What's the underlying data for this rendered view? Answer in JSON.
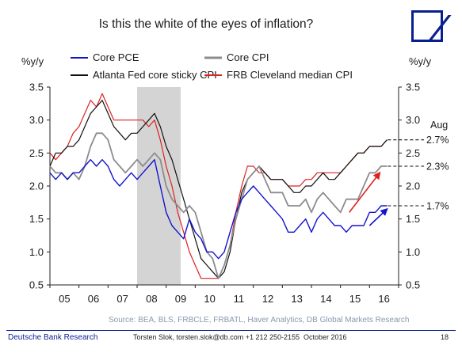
{
  "header": {
    "title": "Is this the white of the eyes of inflation?"
  },
  "footer": {
    "org": "Deutsche Bank Research",
    "contact": "Torsten Slok, torsten.slok@db.com +1 212 250-2155",
    "date": "October 2016",
    "page": "18"
  },
  "colors": {
    "core_pce": "#1414cc",
    "core_cpi": "#8c8c8c",
    "sticky_cpi": "#111111",
    "median_cpi": "#e02020",
    "recession": "#d4d4d4",
    "logo": "#0a1f8f",
    "source_text": "#8a97b0"
  },
  "chart_data": {
    "type": "line",
    "title": "Is this the white of the eyes of inflation?",
    "ylabel_left": "%y/y",
    "ylabel_right": "%y/y",
    "x_ticks": [
      "05",
      "06",
      "07",
      "08",
      "09",
      "10",
      "11",
      "12",
      "13",
      "14",
      "15",
      "16"
    ],
    "x_range": [
      2005.0,
      2017.0
    ],
    "ylim": [
      0.5,
      3.5
    ],
    "y_ticks": [
      "0.5",
      "1.0",
      "1.5",
      "2.0",
      "2.5",
      "3.0",
      "3.5"
    ],
    "grid": false,
    "legend_position": "top",
    "recession_shading": {
      "start": 2008.0,
      "end": 2009.5
    },
    "source": "Source: BEA, BLS, FRBCLE, FRBATL, Haver Analytics, DB Global Markets Research",
    "annotations": {
      "month": "Aug",
      "values": [
        {
          "label": "2.7%",
          "y": 2.7
        },
        {
          "label": "2.3%",
          "y": 2.3
        },
        {
          "label": "1.7%",
          "y": 1.7
        }
      ]
    },
    "series": [
      {
        "name": "Core PCE",
        "key": "core_pce",
        "x": [
          2005.0,
          2005.2,
          2005.4,
          2005.6,
          2005.8,
          2006.0,
          2006.2,
          2006.4,
          2006.6,
          2006.8,
          2007.0,
          2007.2,
          2007.4,
          2007.6,
          2007.8,
          2008.0,
          2008.2,
          2008.4,
          2008.6,
          2008.8,
          2009.0,
          2009.2,
          2009.4,
          2009.6,
          2009.8,
          2010.0,
          2010.2,
          2010.4,
          2010.6,
          2010.8,
          2011.0,
          2011.2,
          2011.4,
          2011.6,
          2011.8,
          2012.0,
          2012.2,
          2012.4,
          2012.6,
          2012.8,
          2013.0,
          2013.2,
          2013.4,
          2013.6,
          2013.8,
          2014.0,
          2014.2,
          2014.4,
          2014.6,
          2014.8,
          2015.0,
          2015.2,
          2015.4,
          2015.6,
          2015.8,
          2016.0,
          2016.2,
          2016.4,
          2016.6
        ],
        "values": [
          2.2,
          2.1,
          2.2,
          2.1,
          2.2,
          2.2,
          2.3,
          2.4,
          2.3,
          2.4,
          2.3,
          2.1,
          2.0,
          2.1,
          2.2,
          2.1,
          2.2,
          2.3,
          2.4,
          2.0,
          1.6,
          1.4,
          1.3,
          1.2,
          1.5,
          1.3,
          1.2,
          1.0,
          1.0,
          0.9,
          1.0,
          1.3,
          1.6,
          1.8,
          1.9,
          2.0,
          1.9,
          1.8,
          1.7,
          1.6,
          1.5,
          1.3,
          1.3,
          1.4,
          1.5,
          1.3,
          1.5,
          1.6,
          1.5,
          1.4,
          1.4,
          1.3,
          1.4,
          1.4,
          1.4,
          1.6,
          1.6,
          1.7,
          1.7
        ]
      },
      {
        "name": "Core CPI",
        "key": "core_cpi",
        "x": [
          2005.0,
          2005.2,
          2005.4,
          2005.6,
          2005.8,
          2006.0,
          2006.2,
          2006.4,
          2006.6,
          2006.8,
          2007.0,
          2007.2,
          2007.4,
          2007.6,
          2007.8,
          2008.0,
          2008.2,
          2008.4,
          2008.6,
          2008.8,
          2009.0,
          2009.2,
          2009.4,
          2009.6,
          2009.8,
          2010.0,
          2010.2,
          2010.4,
          2010.6,
          2010.8,
          2011.0,
          2011.2,
          2011.4,
          2011.6,
          2011.8,
          2012.0,
          2012.2,
          2012.4,
          2012.6,
          2012.8,
          2013.0,
          2013.2,
          2013.4,
          2013.6,
          2013.8,
          2014.0,
          2014.2,
          2014.4,
          2014.6,
          2014.8,
          2015.0,
          2015.2,
          2015.4,
          2015.6,
          2015.8,
          2016.0,
          2016.2,
          2016.4,
          2016.6
        ],
        "values": [
          2.3,
          2.2,
          2.2,
          2.1,
          2.2,
          2.1,
          2.3,
          2.6,
          2.8,
          2.8,
          2.7,
          2.4,
          2.3,
          2.2,
          2.3,
          2.4,
          2.3,
          2.4,
          2.5,
          2.4,
          2.0,
          1.8,
          1.7,
          1.6,
          1.7,
          1.6,
          1.3,
          1.0,
          0.9,
          0.6,
          0.8,
          1.1,
          1.5,
          1.8,
          2.1,
          2.2,
          2.3,
          2.1,
          1.9,
          1.9,
          1.9,
          1.7,
          1.7,
          1.7,
          1.8,
          1.6,
          1.8,
          1.9,
          1.8,
          1.7,
          1.6,
          1.8,
          1.8,
          1.8,
          2.0,
          2.2,
          2.2,
          2.3,
          2.3
        ]
      },
      {
        "name": "Atlanta Fed core sticky CPI",
        "key": "sticky_cpi",
        "x": [
          2005.0,
          2005.2,
          2005.4,
          2005.6,
          2005.8,
          2006.0,
          2006.2,
          2006.4,
          2006.6,
          2006.8,
          2007.0,
          2007.2,
          2007.4,
          2007.6,
          2007.8,
          2008.0,
          2008.2,
          2008.4,
          2008.6,
          2008.8,
          2009.0,
          2009.2,
          2009.4,
          2009.6,
          2009.8,
          2010.0,
          2010.2,
          2010.4,
          2010.6,
          2010.8,
          2011.0,
          2011.2,
          2011.4,
          2011.6,
          2011.8,
          2012.0,
          2012.2,
          2012.4,
          2012.6,
          2012.8,
          2013.0,
          2013.2,
          2013.4,
          2013.6,
          2013.8,
          2014.0,
          2014.2,
          2014.4,
          2014.6,
          2014.8,
          2015.0,
          2015.2,
          2015.4,
          2015.6,
          2015.8,
          2016.0,
          2016.2,
          2016.4,
          2016.6
        ],
        "values": [
          2.3,
          2.5,
          2.5,
          2.6,
          2.6,
          2.7,
          2.9,
          3.1,
          3.2,
          3.3,
          3.1,
          2.9,
          2.8,
          2.7,
          2.8,
          2.8,
          2.9,
          3.0,
          3.1,
          2.9,
          2.6,
          2.4,
          2.1,
          1.8,
          1.5,
          1.2,
          0.9,
          0.8,
          0.7,
          0.6,
          0.7,
          1.0,
          1.5,
          1.9,
          2.1,
          2.2,
          2.3,
          2.2,
          2.1,
          2.1,
          2.1,
          2.0,
          1.9,
          1.9,
          2.0,
          2.0,
          2.1,
          2.2,
          2.1,
          2.1,
          2.2,
          2.3,
          2.4,
          2.5,
          2.5,
          2.6,
          2.6,
          2.6,
          2.7
        ]
      },
      {
        "name": "FRB Cleveland median CPI",
        "key": "median_cpi",
        "x": [
          2005.0,
          2005.2,
          2005.4,
          2005.6,
          2005.8,
          2006.0,
          2006.2,
          2006.4,
          2006.6,
          2006.8,
          2007.0,
          2007.2,
          2007.4,
          2007.6,
          2007.8,
          2008.0,
          2008.2,
          2008.4,
          2008.6,
          2008.8,
          2009.0,
          2009.2,
          2009.4,
          2009.6,
          2009.8,
          2010.0,
          2010.2,
          2010.4,
          2010.6,
          2010.8,
          2011.0,
          2011.2,
          2011.4,
          2011.6,
          2011.8,
          2012.0,
          2012.2,
          2012.4,
          2012.6,
          2012.8,
          2013.0,
          2013.2,
          2013.4,
          2013.6,
          2013.8,
          2014.0,
          2014.2,
          2014.4,
          2014.6,
          2014.8,
          2015.0,
          2015.2,
          2015.4,
          2015.6,
          2015.8,
          2016.0,
          2016.2,
          2016.4,
          2016.6
        ],
        "values": [
          2.5,
          2.4,
          2.5,
          2.6,
          2.8,
          2.9,
          3.1,
          3.3,
          3.2,
          3.4,
          3.2,
          3.0,
          3.0,
          3.0,
          3.0,
          3.0,
          3.0,
          2.9,
          3.0,
          2.7,
          2.3,
          2.0,
          1.6,
          1.3,
          1.0,
          0.8,
          0.6,
          0.6,
          0.6,
          0.6,
          0.8,
          1.1,
          1.6,
          2.0,
          2.3,
          2.3,
          2.2,
          2.2,
          2.1,
          2.1,
          2.1,
          2.0,
          2.0,
          2.0,
          2.1,
          2.1,
          2.2,
          2.2,
          2.2,
          2.2,
          2.2,
          2.3,
          2.4,
          2.5,
          2.5,
          2.6,
          2.6,
          2.6,
          2.7
        ]
      }
    ]
  }
}
